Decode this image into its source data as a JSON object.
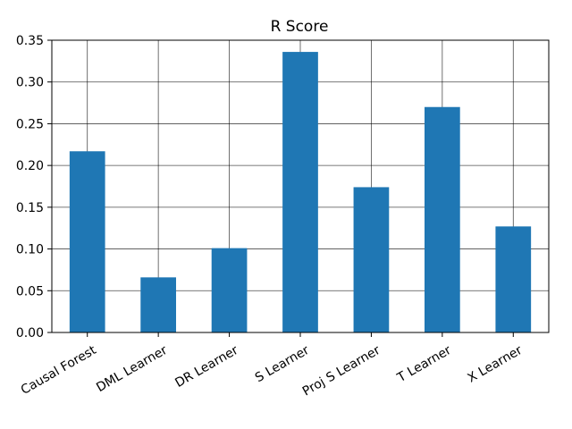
{
  "chart_data": {
    "type": "bar",
    "title": "R Score",
    "xlabel": "",
    "ylabel": "",
    "categories": [
      "Causal Forest",
      "DML Learner",
      "DR Learner",
      "S Learner",
      "Proj S Learner",
      "T Learner",
      "X Learner"
    ],
    "values": [
      0.217,
      0.066,
      0.101,
      0.336,
      0.174,
      0.27,
      0.127
    ],
    "ylim": [
      0,
      0.35
    ],
    "yticks": [
      0.0,
      0.05,
      0.1,
      0.15,
      0.2,
      0.25,
      0.3,
      0.35
    ],
    "ytick_labels": [
      "0.00",
      "0.05",
      "0.10",
      "0.15",
      "0.20",
      "0.25",
      "0.30",
      "0.35"
    ],
    "grid": true,
    "legend": "none",
    "bar_color": "#1f77b4",
    "grid_color": "#000000"
  }
}
